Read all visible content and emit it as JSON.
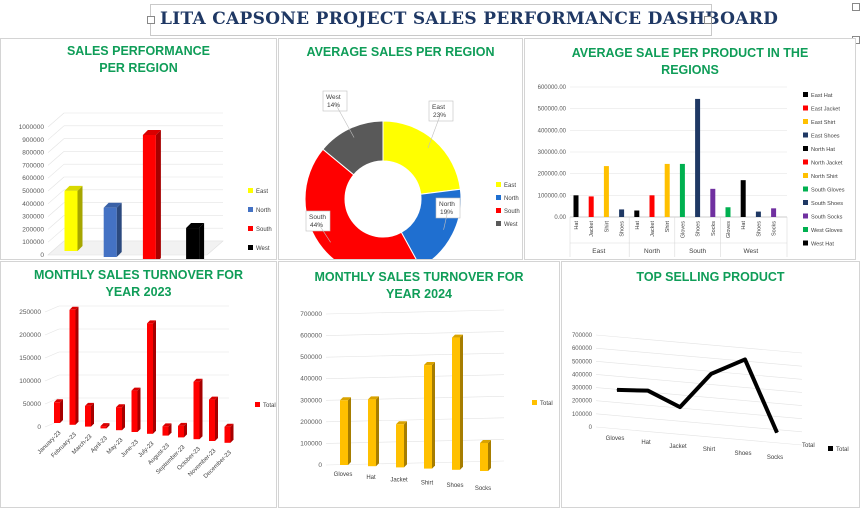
{
  "dashboard_title": "LITA CAPSONE PROJECT SALES PERFORMANCE DASHBOARD",
  "chart_data": [
    {
      "id": "c1",
      "type": "bar",
      "title": "SALES PERFORMANCE PER REGION",
      "categories": [
        "East",
        "North",
        "South",
        "West"
      ],
      "values": [
        470000,
        385000,
        1000000,
        320000
      ],
      "colors": [
        "#ffff00",
        "#4472c4",
        "#ff0000",
        "#000000"
      ],
      "yticks": [
        "1000000",
        "900000",
        "800000",
        "700000",
        "600000",
        "500000",
        "400000",
        "300000",
        "200000",
        "100000",
        "0"
      ],
      "ylim": [
        0,
        1000000
      ],
      "legend": [
        "East",
        "North",
        "South",
        "West"
      ],
      "legend_position": "right"
    },
    {
      "id": "c2",
      "type": "pie",
      "title": "AVERAGE SALES PER REGION",
      "slices": [
        {
          "name": "East",
          "value": 23,
          "label": "East\n23%",
          "color": "#ffff00"
        },
        {
          "name": "North",
          "value": 19,
          "label": "North\n19%",
          "color": "#1f6fd0"
        },
        {
          "name": "South",
          "value": 44,
          "label": "South\n44%",
          "color": "#ff0000"
        },
        {
          "name": "West",
          "value": 14,
          "label": "West\n14%",
          "color": "#595959"
        }
      ],
      "legend": [
        "East",
        "North",
        "South",
        "West"
      ],
      "legend_position": "right"
    },
    {
      "id": "c3",
      "type": "bar",
      "title": "AVERAGE SALE PER PRODUCT IN THE REGIONS",
      "groups": [
        {
          "name": "East",
          "categories": [
            "Hat",
            "Jacket",
            "Shirt",
            "Shoes"
          ],
          "values": [
            100000,
            95000,
            235000,
            35000
          ],
          "colors": [
            "#000000",
            "#ff0000",
            "#ffc000",
            "#1f3864"
          ]
        },
        {
          "name": "North",
          "categories": [
            "Hat",
            "Jacket",
            "Shirt"
          ],
          "values": [
            30000,
            100000,
            245000
          ],
          "colors": [
            "#000000",
            "#ff0000",
            "#ffc000"
          ]
        },
        {
          "name": "South",
          "categories": [
            "Gloves",
            "Shoes",
            "Socks"
          ],
          "values": [
            245000,
            545000,
            130000
          ],
          "colors": [
            "#00b050",
            "#1f3864",
            "#7030a0"
          ]
        },
        {
          "name": "West",
          "categories": [
            "Gloves",
            "Hat",
            "Shoes",
            "Socks"
          ],
          "values": [
            45000,
            170000,
            25000,
            40000
          ],
          "colors": [
            "#00b050",
            "#000000",
            "#1f3864",
            "#7030a0"
          ]
        }
      ],
      "yticks": [
        "600000.00",
        "500000.00",
        "400000.00",
        "300000.00",
        "200000.00",
        "100000.00",
        "0.00"
      ],
      "ylim": [
        0,
        600000
      ],
      "legend": [
        {
          "name": "East Hat",
          "color": "#000000"
        },
        {
          "name": "East Jacket",
          "color": "#ff0000"
        },
        {
          "name": "East Shirt",
          "color": "#ffc000"
        },
        {
          "name": "East Shoes",
          "color": "#1f3864"
        },
        {
          "name": "North Hat",
          "color": "#000000"
        },
        {
          "name": "North Jacket",
          "color": "#ff0000"
        },
        {
          "name": "North Shirt",
          "color": "#ffc000"
        },
        {
          "name": "South Gloves",
          "color": "#00b050"
        },
        {
          "name": "South Shoes",
          "color": "#1f3864"
        },
        {
          "name": "South Socks",
          "color": "#7030a0"
        },
        {
          "name": "West Gloves",
          "color": "#00b050"
        },
        {
          "name": "West Hat",
          "color": "#000000"
        }
      ],
      "legend_position": "right"
    },
    {
      "id": "c4",
      "type": "bar",
      "title": "MONTHLY SALES TURNOVER FOR YEAR 2023",
      "categories": [
        "January-23",
        "February-23",
        "March-23",
        "April-23",
        "May-23",
        "June-23",
        "July-23",
        "August-23",
        "September-23",
        "October-23",
        "November-23",
        "December-23"
      ],
      "values": [
        45000,
        250000,
        45000,
        5000,
        50000,
        90000,
        240000,
        20000,
        25000,
        125000,
        90000,
        35000
      ],
      "color": "#ff0000",
      "yticks": [
        "250000",
        "200000",
        "150000",
        "100000",
        "50000",
        "0"
      ],
      "ylim": [
        0,
        250000
      ],
      "legend": [
        "Total"
      ],
      "legend_position": "right"
    },
    {
      "id": "c5",
      "type": "bar",
      "title": "MONTHLY SALES TURNOVER FOR YEAR 2024",
      "categories": [
        "Gloves",
        "Hat",
        "Jacket",
        "Shirt",
        "Shoes",
        "Socks"
      ],
      "values": [
        300000,
        310000,
        200000,
        480000,
        613000,
        130000
      ],
      "color": "#ffc000",
      "yticks": [
        "700000",
        "600000",
        "500000",
        "400000",
        "300000",
        "200000",
        "100000",
        "0"
      ],
      "ylim": [
        0,
        700000
      ],
      "legend": [
        "Total"
      ],
      "legend_position": "right"
    },
    {
      "id": "c6",
      "type": "line",
      "title": "TOP SELLING PRODUCT",
      "categories": [
        "Gloves",
        "Hat",
        "Jacket",
        "Shirt",
        "Shoes",
        "Socks"
      ],
      "values": [
        296000,
        311000,
        207000,
        480000,
        613000,
        78000
      ],
      "color": "#000000",
      "yticks": [
        "700000",
        "600000",
        "500000",
        "400000",
        "300000",
        "200000",
        "100000",
        "0"
      ],
      "ylim": [
        0,
        700000
      ],
      "series_label": "Total",
      "legend": [
        "Total"
      ],
      "legend_position": "right"
    }
  ]
}
